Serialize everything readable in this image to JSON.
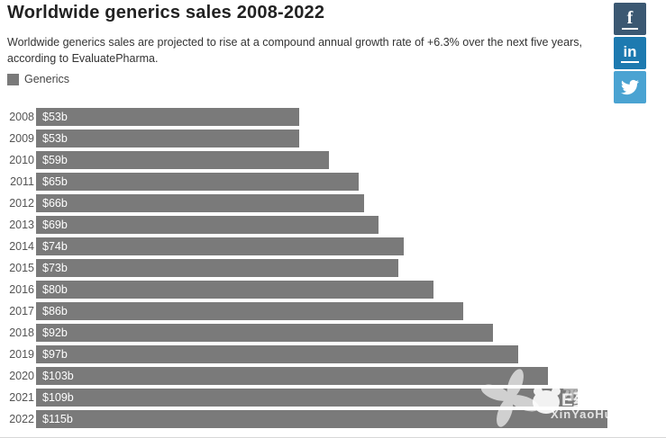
{
  "header": {
    "title": "Worldwide generics sales 2008-2022",
    "subtitle": "Worldwide generics sales are projected to rise at a compound annual growth rate of +6.3% over the next five years, according to EvaluatePharma."
  },
  "legend": {
    "label": "Generics",
    "color": "#7a7a7a"
  },
  "chart_data": {
    "type": "bar",
    "orientation": "horizontal",
    "title": "Worldwide generics sales 2008-2022",
    "series_name": "Generics",
    "categories": [
      "2008",
      "2009",
      "2010",
      "2011",
      "2012",
      "2013",
      "2014",
      "2015",
      "2016",
      "2017",
      "2018",
      "2019",
      "2020",
      "2021",
      "2022"
    ],
    "values": [
      53,
      53,
      59,
      65,
      66,
      69,
      74,
      73,
      80,
      86,
      92,
      97,
      103,
      109,
      115
    ],
    "labels": [
      "$53b",
      "$53b",
      "$59b",
      "$65b",
      "$66b",
      "$69b",
      "$74b",
      "$73b",
      "$80b",
      "$86b",
      "$92b",
      "$97b",
      "$103b",
      "$109b",
      "$115b"
    ],
    "unit": "billion USD",
    "xlim": [
      0,
      115
    ],
    "bar_color": "#7a7a7a",
    "grid": false,
    "legend_position": "top-left"
  },
  "social": {
    "facebook": {
      "label": "f",
      "color": "#3b5872"
    },
    "linkedin": {
      "label": "in",
      "color": "#1d7ab0"
    },
    "twitter": {
      "color": "#4aa3d2"
    }
  },
  "watermark": {
    "ghost_text": "新药汇",
    "brand_text": "E药经理人",
    "site_text": "XinYaoHui.com"
  }
}
